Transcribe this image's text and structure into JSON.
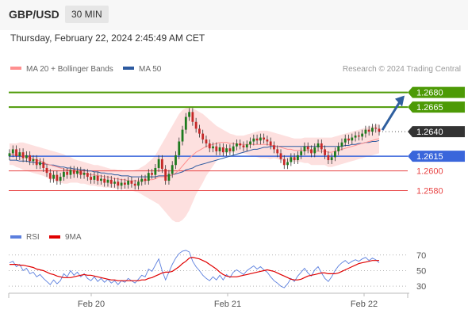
{
  "header": {
    "pair": "GBP/USD",
    "timeframe": "30 MIN",
    "datetime": "Thursday, February 22, 2024 2:45:49 AM CET"
  },
  "legend": {
    "ma20": "MA 20 + Bollinger Bands",
    "ma50": "MA 50",
    "credit": "Research © 2024 Trading Central",
    "rsi": "RSI",
    "rsi_ma": "9MA"
  },
  "colors": {
    "resistance": "#4d9a06",
    "support": "#e84545",
    "pivot": "#3a66db",
    "current": "#333333",
    "ma20": "#ff8f8f",
    "ma50": "#2d5aa0",
    "bollinger_fill": "#fde0df",
    "candle_up": "#1e7a1e",
    "candle_down": "#c62828",
    "arrow": "#2f5f9f"
  },
  "chart_data": [
    {
      "type": "line",
      "title": "",
      "xlabel": "",
      "ylabel": "",
      "x_ticks": [
        "Feb 20",
        "Feb 21",
        "Feb 22"
      ],
      "ylim": [
        1.254,
        1.2695
      ],
      "levels": [
        {
          "name": "resistance-2",
          "value": 1.268,
          "label": "1.2680",
          "kind": "resistance"
        },
        {
          "name": "resistance-1",
          "value": 1.2665,
          "label": "1.2665",
          "kind": "resistance"
        },
        {
          "name": "current",
          "value": 1.264,
          "label": "1.2640",
          "kind": "current"
        },
        {
          "name": "pivot",
          "value": 1.2615,
          "label": "1.2615",
          "kind": "pivot"
        },
        {
          "name": "support-1",
          "value": 1.26,
          "label": "1.2600",
          "kind": "support"
        },
        {
          "name": "support-2",
          "value": 1.258,
          "label": "1.2580",
          "kind": "support"
        }
      ],
      "arrow": {
        "from": 1.264,
        "to": 1.268
      },
      "close": [
        1.2618,
        1.2622,
        1.2615,
        1.2619,
        1.2613,
        1.2616,
        1.261,
        1.2612,
        1.2606,
        1.2609,
        1.2603,
        1.2598,
        1.2592,
        1.2596,
        1.259,
        1.2594,
        1.2599,
        1.2596,
        1.2601,
        1.2597,
        1.26,
        1.2596,
        1.2598,
        1.2594,
        1.2591,
        1.2595,
        1.259,
        1.2592,
        1.2588,
        1.2591,
        1.2587,
        1.2589,
        1.2585,
        1.2588,
        1.2586,
        1.259,
        1.2587,
        1.2585,
        1.2589,
        1.2592,
        1.259,
        1.2598,
        1.2596,
        1.2603,
        1.2612,
        1.2602,
        1.259,
        1.2597,
        1.2606,
        1.2616,
        1.263,
        1.2642,
        1.2655,
        1.266,
        1.265,
        1.2643,
        1.2638,
        1.2632,
        1.2628,
        1.2623,
        1.2625,
        1.262,
        1.2624,
        1.2619,
        1.2623,
        1.262,
        1.2625,
        1.2628,
        1.2626,
        1.2624,
        1.2627,
        1.263,
        1.2633,
        1.2631,
        1.2634,
        1.2632,
        1.263,
        1.2626,
        1.2622,
        1.2618,
        1.2612,
        1.2606,
        1.2609,
        1.2614,
        1.2611,
        1.2616,
        1.262,
        1.2625,
        1.2622,
        1.2618,
        1.2624,
        1.2628,
        1.2622,
        1.2616,
        1.2611,
        1.2614,
        1.262,
        1.2625,
        1.2629,
        1.2633,
        1.2631,
        1.2634,
        1.2636,
        1.2635,
        1.2638,
        1.2642,
        1.264,
        1.2644,
        1.2643,
        1.264
      ],
      "ma20": [
        1.2617,
        1.2617,
        1.2616,
        1.2616,
        1.2615,
        1.2614,
        1.2613,
        1.2612,
        1.2611,
        1.261,
        1.2609,
        1.2607,
        1.2606,
        1.2605,
        1.2604,
        1.2603,
        1.2602,
        1.2601,
        1.2601,
        1.26,
        1.2599,
        1.2598,
        1.2598,
        1.2597,
        1.2596,
        1.2596,
        1.2595,
        1.2595,
        1.2594,
        1.2594,
        1.2593,
        1.2592,
        1.2592,
        1.2591,
        1.2591,
        1.259,
        1.259,
        1.259,
        1.259,
        1.259,
        1.259,
        1.2591,
        1.2591,
        1.2592,
        1.2594,
        1.2594,
        1.2594,
        1.2595,
        1.2596,
        1.2598,
        1.2601,
        1.2605,
        1.2609,
        1.2613,
        1.2616,
        1.2619,
        1.2621,
        1.2623,
        1.2625,
        1.2626,
        1.2627,
        1.2628,
        1.2629,
        1.2629,
        1.2629,
        1.2628,
        1.2628,
        1.2627,
        1.2627,
        1.2627,
        1.2627,
        1.2627,
        1.2627,
        1.2627,
        1.2627,
        1.2627,
        1.2627,
        1.2626,
        1.2626,
        1.2625,
        1.2624,
        1.2623,
        1.2622,
        1.2622,
        1.2621,
        1.2621,
        1.2621,
        1.2621,
        1.2621,
        1.262,
        1.262,
        1.262,
        1.262,
        1.262,
        1.2619,
        1.2619,
        1.262,
        1.2621,
        1.2622,
        1.2623,
        1.2624,
        1.2625,
        1.2626,
        1.2627,
        1.2628,
        1.2629,
        1.263,
        1.2631,
        1.2632,
        1.2633
      ],
      "ma50": [
        1.2611,
        1.2611,
        1.2611,
        1.261,
        1.261,
        1.261,
        1.2609,
        1.2609,
        1.2608,
        1.2608,
        1.2607,
        1.2607,
        1.2606,
        1.2606,
        1.2605,
        1.2604,
        1.2604,
        1.2603,
        1.2603,
        1.2602,
        1.2602,
        1.2601,
        1.2601,
        1.26,
        1.26,
        1.2599,
        1.2599,
        1.2598,
        1.2598,
        1.2597,
        1.2597,
        1.2596,
        1.2596,
        1.2595,
        1.2595,
        1.2595,
        1.2594,
        1.2594,
        1.2594,
        1.2594,
        1.2594,
        1.2594,
        1.2594,
        1.2594,
        1.2595,
        1.2595,
        1.2595,
        1.2595,
        1.2596,
        1.2597,
        1.2598,
        1.2599,
        1.2601,
        1.2602,
        1.2603,
        1.2605,
        1.2606,
        1.2607,
        1.2608,
        1.2609,
        1.261,
        1.2611,
        1.2612,
        1.2613,
        1.2614,
        1.2615,
        1.2616,
        1.2617,
        1.2618,
        1.2619,
        1.262,
        1.2621,
        1.2622,
        1.2622,
        1.2623,
        1.2624,
        1.2624,
        1.2625,
        1.2625,
        1.2625,
        1.2625,
        1.2625,
        1.2625,
        1.2625,
        1.2625,
        1.2625,
        1.2625,
        1.2625,
        1.2625,
        1.2625,
        1.2625,
        1.2625,
        1.2625,
        1.2625,
        1.2625,
        1.2625,
        1.2625,
        1.2625,
        1.2625,
        1.2626,
        1.2626,
        1.2627,
        1.2627,
        1.2628,
        1.2628,
        1.2629,
        1.2629,
        1.263,
        1.263,
        1.2631
      ],
      "bb_upper": [
        1.2628,
        1.2628,
        1.2628,
        1.2629,
        1.2629,
        1.2628,
        1.2627,
        1.2626,
        1.2625,
        1.2624,
        1.2623,
        1.2622,
        1.2621,
        1.262,
        1.2619,
        1.2618,
        1.2617,
        1.2615,
        1.2614,
        1.2612,
        1.2611,
        1.261,
        1.2609,
        1.2608,
        1.2607,
        1.2606,
        1.2606,
        1.2605,
        1.2604,
        1.2603,
        1.2602,
        1.2602,
        1.2601,
        1.2601,
        1.26,
        1.26,
        1.26,
        1.2601,
        1.2602,
        1.2604,
        1.2606,
        1.2609,
        1.2612,
        1.2616,
        1.2622,
        1.2628,
        1.2634,
        1.264,
        1.2646,
        1.2652,
        1.2658,
        1.2662,
        1.2664,
        1.2665,
        1.2664,
        1.2662,
        1.266,
        1.2658,
        1.2655,
        1.2652,
        1.2649,
        1.2646,
        1.2644,
        1.2642,
        1.264,
        1.2638,
        1.2637,
        1.2636,
        1.2636,
        1.2636,
        1.2637,
        1.2638,
        1.2639,
        1.264,
        1.2641,
        1.2641,
        1.2641,
        1.264,
        1.2639,
        1.2638,
        1.2637,
        1.2636,
        1.2635,
        1.2634,
        1.2633,
        1.2633,
        1.2633,
        1.2634,
        1.2634,
        1.2634,
        1.2634,
        1.2634,
        1.2634,
        1.2634,
        1.2634,
        1.2634,
        1.2635,
        1.2636,
        1.2637,
        1.2638,
        1.2639,
        1.264,
        1.2641,
        1.2642,
        1.2643,
        1.2644,
        1.2645,
        1.2646,
        1.2647,
        1.2648
      ],
      "bb_lower": [
        1.2606,
        1.2606,
        1.2604,
        1.2603,
        1.2601,
        1.26,
        1.2599,
        1.2598,
        1.2597,
        1.2596,
        1.2595,
        1.2593,
        1.2591,
        1.259,
        1.2589,
        1.2588,
        1.2587,
        1.2587,
        1.2588,
        1.2588,
        1.2588,
        1.2587,
        1.2587,
        1.2586,
        1.2585,
        1.2585,
        1.2584,
        1.2584,
        1.2583,
        1.2583,
        1.2583,
        1.2582,
        1.2582,
        1.2581,
        1.2581,
        1.258,
        1.258,
        1.2579,
        1.2578,
        1.2576,
        1.2574,
        1.2572,
        1.257,
        1.2568,
        1.2566,
        1.2562,
        1.2558,
        1.2554,
        1.255,
        1.2548,
        1.2548,
        1.255,
        1.2554,
        1.256,
        1.2568,
        1.2576,
        1.2582,
        1.2588,
        1.2595,
        1.26,
        1.2605,
        1.261,
        1.2614,
        1.2616,
        1.2618,
        1.2618,
        1.2619,
        1.2618,
        1.2618,
        1.2618,
        1.2617,
        1.2616,
        1.2615,
        1.2614,
        1.2613,
        1.2613,
        1.2613,
        1.2612,
        1.2613,
        1.2612,
        1.2611,
        1.261,
        1.2609,
        1.261,
        1.2609,
        1.2609,
        1.2609,
        1.2608,
        1.2608,
        1.2606,
        1.2606,
        1.2606,
        1.2606,
        1.2606,
        1.2604,
        1.2604,
        1.2605,
        1.2606,
        1.2607,
        1.2608,
        1.2609,
        1.261,
        1.2611,
        1.2612,
        1.2613,
        1.2614,
        1.2615,
        1.2616,
        1.2617,
        1.2618
      ]
    },
    {
      "type": "line",
      "title": "",
      "ylim": [
        25,
        80
      ],
      "y_ticks": [
        70,
        50,
        30
      ],
      "series": [
        {
          "name": "RSI",
          "values": [
            60,
            62,
            55,
            58,
            50,
            53,
            46,
            48,
            42,
            45,
            40,
            36,
            32,
            38,
            33,
            37,
            46,
            42,
            50,
            44,
            48,
            42,
            46,
            40,
            37,
            42,
            36,
            40,
            35,
            39,
            34,
            37,
            32,
            37,
            35,
            40,
            37,
            34,
            39,
            44,
            42,
            52,
            49,
            57,
            65,
            50,
            38,
            48,
            58,
            66,
            72,
            75,
            76,
            74,
            62,
            55,
            50,
            44,
            40,
            37,
            42,
            38,
            44,
            38,
            45,
            41,
            48,
            51,
            48,
            45,
            50,
            53,
            56,
            52,
            55,
            51,
            48,
            42,
            37,
            34,
            30,
            28,
            33,
            40,
            36,
            43,
            48,
            53,
            47,
            43,
            51,
            55,
            47,
            40,
            36,
            42,
            50,
            56,
            60,
            63,
            59,
            62,
            64,
            62,
            65,
            67,
            63,
            66,
            64,
            60
          ]
        },
        {
          "name": "9MA",
          "values": [
            58,
            58,
            58,
            57,
            57,
            56,
            55,
            54,
            52,
            51,
            50,
            48,
            46,
            45,
            43,
            42,
            41,
            41,
            41,
            42,
            43,
            44,
            45,
            44,
            44,
            43,
            42,
            41,
            40,
            39,
            38,
            38,
            37,
            37,
            37,
            37,
            37,
            37,
            37,
            38,
            38,
            40,
            41,
            43,
            45,
            47,
            48,
            48,
            49,
            52,
            55,
            59,
            62,
            66,
            67,
            66,
            65,
            63,
            61,
            58,
            55,
            52,
            48,
            45,
            43,
            42,
            42,
            42,
            43,
            44,
            45,
            46,
            47,
            48,
            49,
            50,
            51,
            50,
            49,
            47,
            45,
            43,
            41,
            39,
            38,
            38,
            39,
            41,
            43,
            44,
            45,
            46,
            47,
            47,
            46,
            46,
            46,
            47,
            49,
            51,
            53,
            55,
            57,
            59,
            60,
            61,
            62,
            63,
            63,
            63
          ]
        }
      ]
    }
  ]
}
